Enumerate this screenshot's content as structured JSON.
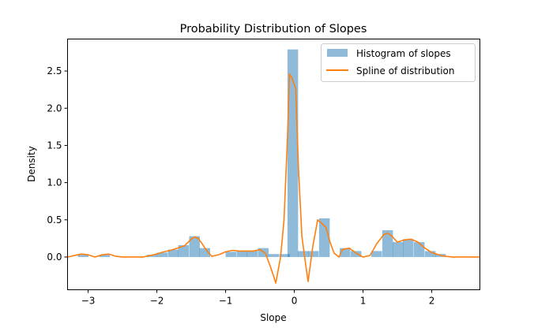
{
  "chart_data": {
    "type": "bar",
    "title": "Probability Distribution of Slopes",
    "xlabel": "Slope",
    "ylabel": "Density",
    "xlim": [
      -3.3,
      2.7
    ],
    "ylim": [
      -0.44,
      2.93
    ],
    "xticks": [
      {
        "value": -3,
        "label": "−3"
      },
      {
        "value": -2,
        "label": "−2"
      },
      {
        "value": -1,
        "label": "−1"
      },
      {
        "value": 0,
        "label": "0"
      },
      {
        "value": 1,
        "label": "1"
      },
      {
        "value": 2,
        "label": "2"
      }
    ],
    "yticks": [
      {
        "value": 0.0,
        "label": "0.0"
      },
      {
        "value": 0.5,
        "label": "0.5"
      },
      {
        "value": 1.0,
        "label": "1.0"
      },
      {
        "value": 1.5,
        "label": "1.5"
      },
      {
        "value": 2.0,
        "label": "2.0"
      },
      {
        "value": 2.5,
        "label": "2.5"
      }
    ],
    "grid": false,
    "legend_position": "top-right",
    "series": [
      {
        "name": "Histogram of slopes",
        "kind": "histogram",
        "color": "#1f77b4",
        "opacity": 0.5,
        "bin_width": 0.155,
        "bins": [
          {
            "x0": -3.15,
            "value": 0.03
          },
          {
            "x0": -2.84,
            "value": 0.03
          },
          {
            "x0": -2.15,
            "value": 0.03
          },
          {
            "x0": -2.0,
            "value": 0.06
          },
          {
            "x0": -1.84,
            "value": 0.1
          },
          {
            "x0": -1.69,
            "value": 0.16
          },
          {
            "x0": -1.53,
            "value": 0.28
          },
          {
            "x0": -1.38,
            "value": 0.12
          },
          {
            "x0": -1.0,
            "value": 0.07
          },
          {
            "x0": -0.84,
            "value": 0.08
          },
          {
            "x0": -0.69,
            "value": 0.08
          },
          {
            "x0": -0.53,
            "value": 0.12
          },
          {
            "x0": -0.38,
            "value": 0.04
          },
          {
            "x0": -0.22,
            "value": 0.04
          },
          {
            "x0": -0.1,
            "value": 2.79
          },
          {
            "x0": 0.05,
            "value": 0.08
          },
          {
            "x0": 0.2,
            "value": 0.08
          },
          {
            "x0": 0.36,
            "value": 0.52
          },
          {
            "x0": 0.66,
            "value": 0.12
          },
          {
            "x0": 0.82,
            "value": 0.08
          },
          {
            "x0": 1.12,
            "value": 0.08
          },
          {
            "x0": 1.28,
            "value": 0.36
          },
          {
            "x0": 1.43,
            "value": 0.2
          },
          {
            "x0": 1.58,
            "value": 0.24
          },
          {
            "x0": 1.74,
            "value": 0.2
          },
          {
            "x0": 1.9,
            "value": 0.08
          },
          {
            "x0": 2.05,
            "value": 0.04
          }
        ]
      },
      {
        "name": "Spline of distribution",
        "kind": "line",
        "color": "#ff7f0e",
        "points": [
          [
            -3.3,
            0.0
          ],
          [
            -3.2,
            0.02
          ],
          [
            -3.1,
            0.04
          ],
          [
            -3.0,
            0.03
          ],
          [
            -2.9,
            0.0
          ],
          [
            -2.8,
            0.03
          ],
          [
            -2.7,
            0.04
          ],
          [
            -2.6,
            0.01
          ],
          [
            -2.5,
            0.0
          ],
          [
            -2.3,
            0.0
          ],
          [
            -2.2,
            0.0
          ],
          [
            -2.1,
            0.02
          ],
          [
            -2.0,
            0.04
          ],
          [
            -1.9,
            0.07
          ],
          [
            -1.8,
            0.09
          ],
          [
            -1.7,
            0.12
          ],
          [
            -1.6,
            0.15
          ],
          [
            -1.5,
            0.24
          ],
          [
            -1.45,
            0.27
          ],
          [
            -1.4,
            0.25
          ],
          [
            -1.35,
            0.19
          ],
          [
            -1.3,
            0.12
          ],
          [
            -1.25,
            0.06
          ],
          [
            -1.2,
            0.01
          ],
          [
            -1.1,
            0.03
          ],
          [
            -1.0,
            0.07
          ],
          [
            -0.9,
            0.09
          ],
          [
            -0.8,
            0.08
          ],
          [
            -0.7,
            0.08
          ],
          [
            -0.6,
            0.08
          ],
          [
            -0.5,
            0.1
          ],
          [
            -0.42,
            0.05
          ],
          [
            -0.34,
            -0.15
          ],
          [
            -0.27,
            -0.35
          ],
          [
            -0.2,
            0.0
          ],
          [
            -0.15,
            0.5
          ],
          [
            -0.1,
            1.6
          ],
          [
            -0.07,
            2.46
          ],
          [
            -0.03,
            2.4
          ],
          [
            0.02,
            2.26
          ],
          [
            0.06,
            1.2
          ],
          [
            0.11,
            0.28
          ],
          [
            0.15,
            0.0
          ],
          [
            0.2,
            -0.33
          ],
          [
            0.27,
            0.15
          ],
          [
            0.34,
            0.5
          ],
          [
            0.4,
            0.45
          ],
          [
            0.46,
            0.4
          ],
          [
            0.52,
            0.2
          ],
          [
            0.58,
            0.05
          ],
          [
            0.65,
            0.0
          ],
          [
            0.7,
            0.1
          ],
          [
            0.8,
            0.12
          ],
          [
            0.9,
            0.05
          ],
          [
            1.0,
            0.0
          ],
          [
            1.1,
            0.02
          ],
          [
            1.2,
            0.18
          ],
          [
            1.3,
            0.3
          ],
          [
            1.36,
            0.32
          ],
          [
            1.42,
            0.28
          ],
          [
            1.5,
            0.2
          ],
          [
            1.6,
            0.23
          ],
          [
            1.7,
            0.24
          ],
          [
            1.8,
            0.2
          ],
          [
            1.9,
            0.12
          ],
          [
            2.0,
            0.06
          ],
          [
            2.1,
            0.03
          ],
          [
            2.2,
            0.01
          ],
          [
            2.3,
            0.0
          ],
          [
            2.5,
            0.0
          ],
          [
            2.7,
            0.0
          ]
        ]
      }
    ]
  }
}
